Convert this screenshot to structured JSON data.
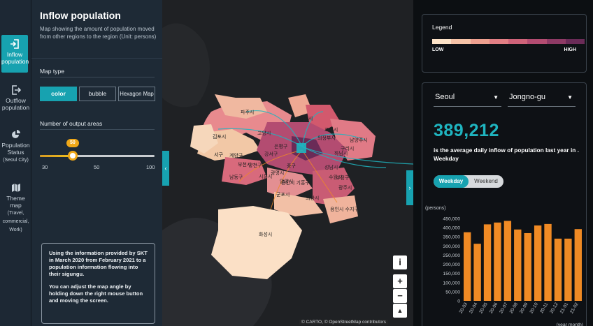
{
  "nav": {
    "items": [
      {
        "label": "Inflow population",
        "sub": "",
        "icon": "inflow-icon"
      },
      {
        "label": "Outflow population",
        "sub": "",
        "icon": "outflow-icon"
      },
      {
        "label": "Population Status",
        "sub": "(Seoul City)",
        "icon": "pie-chart-icon"
      },
      {
        "label": "Theme map",
        "sub": "(Travel, commercial, Work)",
        "icon": "map-icon"
      }
    ]
  },
  "panel": {
    "title": "Inflow population",
    "description": "Map showing the amount of population moved from other regions to the region (Unit: persons)",
    "map_type_label": "Map type",
    "map_types": [
      "color",
      "bubble",
      "Hexagon Map"
    ],
    "selected_map_type": "color",
    "output_areas_label": "Number of output areas",
    "slider": {
      "min": 30,
      "max": 100,
      "value": 50,
      "ticks": [
        "30",
        "50",
        "100"
      ]
    },
    "info_p1": "Using the information provided by SKT in March 2020 from February 2021 to a population information flowing into their sigungu.",
    "info_p2": "You can adjust the map angle by holding down the right mouse button and moving the screen."
  },
  "map": {
    "labels": [
      "파주시",
      "양주시",
      "포천시",
      "의정부시",
      "남양주시",
      "고양시",
      "김포시",
      "구리시",
      "서구",
      "계양구",
      "부천시",
      "강서구",
      "양천구",
      "광명시",
      "하남시",
      "남동구",
      "안양시",
      "시흥시",
      "성남시",
      "수원시",
      "수정구",
      "광주시",
      "군포시",
      "의왕시",
      "용인시 수지구",
      "화성시",
      "용인시 기흥구",
      "은평구",
      "중구"
    ],
    "attribution": "© CARTO, © OpenStreetMap contributors",
    "controls": {
      "info": "i",
      "zoom_in": "+",
      "zoom_out": "−",
      "compass": "▲"
    }
  },
  "legend": {
    "title": "Legend",
    "low": "LOW",
    "high": "HIGH",
    "colors": [
      "#fde3c8",
      "#f6c3a7",
      "#eea08f",
      "#e27f84",
      "#cf6379",
      "#b34c71",
      "#8e3a65",
      "#6a2b57"
    ]
  },
  "stats": {
    "region": "Seoul",
    "district": "Jongno-gu",
    "value": "389,212",
    "description": "is the average daily inflow of population last year in . Weekday",
    "toggle": [
      "Weekday",
      "Weekend"
    ],
    "toggle_selected": "Weekday",
    "accent": "#1fb5c0"
  },
  "chart_data": {
    "type": "bar",
    "ylabel": "(persons)",
    "xlabel": "(year month)",
    "ylim": [
      0,
      450000
    ],
    "yticks": [
      0,
      50000,
      100000,
      150000,
      200000,
      250000,
      300000,
      350000,
      400000,
      450000
    ],
    "ytick_labels": [
      "0",
      "50,000",
      "100,000",
      "150,000",
      "200,000",
      "250,000",
      "300,000",
      "350,000",
      "400,000",
      "450,000"
    ],
    "categories": [
      "20-03",
      "20-04",
      "20-05",
      "20-06",
      "20-07",
      "20-08",
      "20-09",
      "20-10",
      "20-11",
      "20-12",
      "21-01",
      "21-02"
    ],
    "values": [
      375000,
      312000,
      418000,
      428000,
      437000,
      390000,
      370000,
      412000,
      420000,
      340000,
      340000,
      392000
    ],
    "bar_color": "#f08a24"
  }
}
